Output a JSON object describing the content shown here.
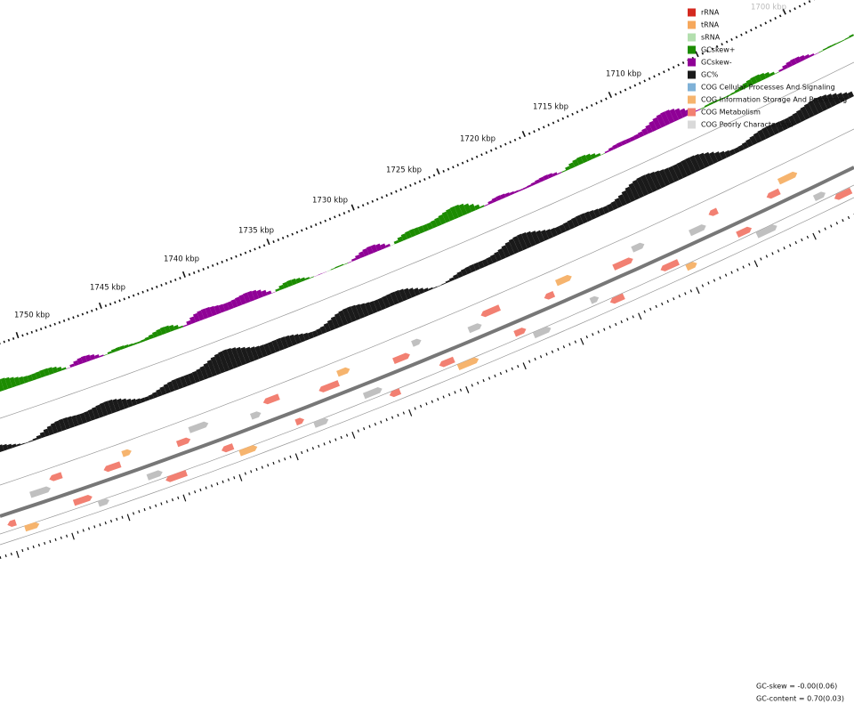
{
  "scale_labels": [
    "1700 kbp",
    "1710 kbp",
    "1715 kbp",
    "1720 kbp",
    "1725 kbp",
    "1730 kbp",
    "1735 kbp",
    "1740 kbp",
    "1745 kbp",
    "1750 kbp"
  ],
  "legend": [
    {
      "label": "rRNA",
      "color": "#d42a20"
    },
    {
      "label": "tRNA",
      "color": "#f6a85c"
    },
    {
      "label": "sRNA",
      "color": "#b3dfae"
    },
    {
      "label": "GCskew+",
      "color": "#1c8c00"
    },
    {
      "label": "GCskew-",
      "color": "#8f0096"
    },
    {
      "label": "GC%",
      "color": "#1a1a1a"
    },
    {
      "label": "COG Cellular Processes And Signaling",
      "color": "#7fb1d7"
    },
    {
      "label": "COG Information Storage And Processing",
      "color": "#f6b46e"
    },
    {
      "label": "COG Metabolism",
      "color": "#f28072"
    },
    {
      "label": "COG Poorly Characterized",
      "color": "#d9d9d9"
    }
  ],
  "footer": [
    "GC-skew = -0.00(0.06)",
    "GC-content = 0.70(0.03)"
  ]
}
